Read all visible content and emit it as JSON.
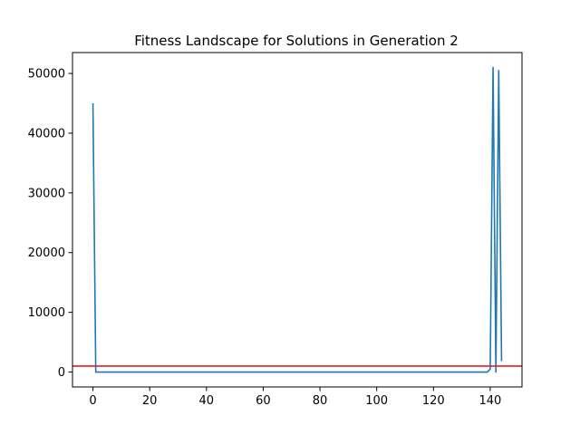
{
  "chart_data": {
    "type": "line",
    "title": "Fitness Landscape for Solutions in Generation 2",
    "xlabel": "",
    "ylabel": "",
    "xlim": [
      -7.2,
      151.2
    ],
    "ylim": [
      -2500,
      53500
    ],
    "xticks": [
      0,
      20,
      40,
      60,
      80,
      100,
      120,
      140
    ],
    "yticks": [
      0,
      10000,
      20000,
      30000,
      40000,
      50000
    ],
    "grid": false,
    "series": [
      {
        "color": "#1f77b4",
        "x": [
          0,
          1,
          2,
          10,
          20,
          30,
          40,
          50,
          60,
          70,
          80,
          90,
          100,
          110,
          120,
          130,
          139,
          140,
          141,
          142,
          143,
          144
        ],
        "y": [
          45000,
          0,
          0,
          0,
          0,
          0,
          0,
          0,
          0,
          0,
          0,
          0,
          0,
          0,
          0,
          0,
          0,
          500,
          51000,
          0,
          50500,
          1800
        ]
      }
    ],
    "hlines": [
      {
        "y": 1000,
        "color": "#d62728"
      }
    ]
  }
}
